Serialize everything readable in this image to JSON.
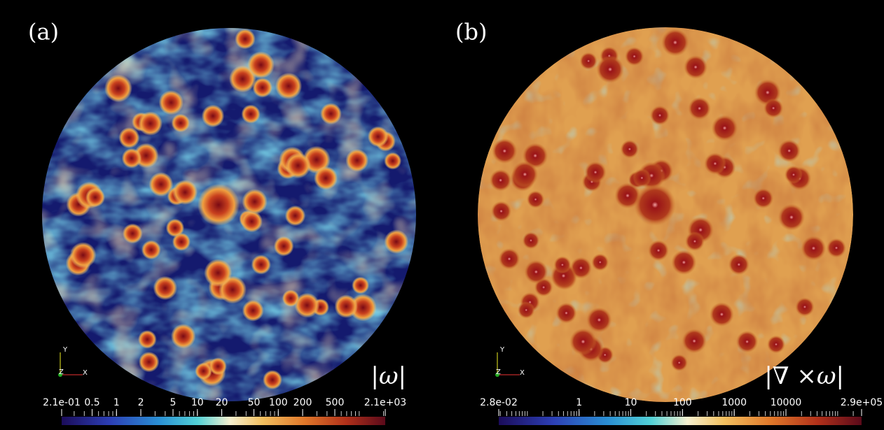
{
  "panels": [
    {
      "label": "(a)",
      "quantity": "|ω|",
      "axes": {
        "y": "Y",
        "z": "Z",
        "x": "X"
      },
      "colorbar": {
        "range": [
          0.21,
          2100
        ],
        "log": true,
        "ticks": [
          {
            "value": 0.21,
            "label": "2.1e-01"
          },
          0.5,
          1,
          2,
          5,
          10,
          20,
          50,
          100,
          200,
          500,
          {
            "value": 2100,
            "label": "2.1e+03"
          }
        ]
      }
    },
    {
      "label": "(b)",
      "quantity": "|∇ ×ω|",
      "axes": {
        "y": "Y",
        "z": "Z",
        "x": "X"
      },
      "colorbar": {
        "range": [
          0.028,
          290000
        ],
        "log": true,
        "ticks": [
          {
            "value": 0.028,
            "label": "2.8e-02"
          },
          1,
          10,
          100,
          1000,
          10000,
          {
            "value": 290000,
            "label": "2.9e+05"
          }
        ]
      }
    }
  ]
}
